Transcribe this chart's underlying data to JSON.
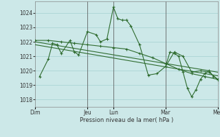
{
  "background_color": "#cce8e8",
  "grid_color": "#aad4d4",
  "line_color": "#2d6a2d",
  "ylabel_text": "Pression niveau de la mer( hPa )",
  "xtick_labels": [
    "Dim",
    "Jeu",
    "Lun",
    "Mar",
    "Mer"
  ],
  "xtick_positions": [
    0,
    48,
    72,
    120,
    168
  ],
  "ylim": [
    1017.5,
    1024.8
  ],
  "yticks": [
    1018,
    1019,
    1020,
    1021,
    1022,
    1023,
    1024
  ],
  "series1_x": [
    4,
    12,
    16,
    20,
    24,
    32,
    36,
    40,
    48,
    56,
    60,
    66,
    72,
    76,
    80,
    84,
    88,
    96,
    104,
    112,
    120,
    128,
    136,
    144,
    152,
    160,
    168
  ],
  "series1_y": [
    1019.6,
    1020.8,
    1021.9,
    1021.8,
    1021.2,
    1022.1,
    1021.3,
    1021.1,
    1022.7,
    1022.5,
    1022.0,
    1022.2,
    1024.4,
    1023.6,
    1023.5,
    1023.5,
    1023.1,
    1021.8,
    1019.7,
    1019.8,
    1020.3,
    1021.3,
    1021.0,
    1019.9,
    1020.0,
    1019.9,
    1019.4
  ],
  "series2_x": [
    0,
    12,
    24,
    36,
    48,
    60,
    72,
    84,
    96,
    108,
    120,
    132,
    144,
    156,
    168
  ],
  "series2_y": [
    1022.1,
    1022.1,
    1022.0,
    1021.9,
    1021.8,
    1021.7,
    1021.6,
    1021.5,
    1021.2,
    1020.9,
    1020.5,
    1020.1,
    1019.8,
    1019.6,
    1019.4
  ],
  "trend1_x": [
    0,
    168
  ],
  "trend1_y": [
    1022.0,
    1019.9
  ],
  "trend2_x": [
    0,
    168
  ],
  "trend2_y": [
    1021.8,
    1019.65
  ],
  "series5_x": [
    120,
    124,
    128,
    132,
    136,
    140,
    144,
    148,
    152,
    156,
    160,
    164,
    168
  ],
  "series5_y": [
    1020.3,
    1021.3,
    1021.2,
    1021.0,
    1019.9,
    1018.8,
    1018.2,
    1018.7,
    1019.4,
    1019.8,
    1020.0,
    1019.6,
    1019.4
  ],
  "vline_positions": [
    48,
    72,
    120,
    168
  ],
  "total_hours": 168
}
